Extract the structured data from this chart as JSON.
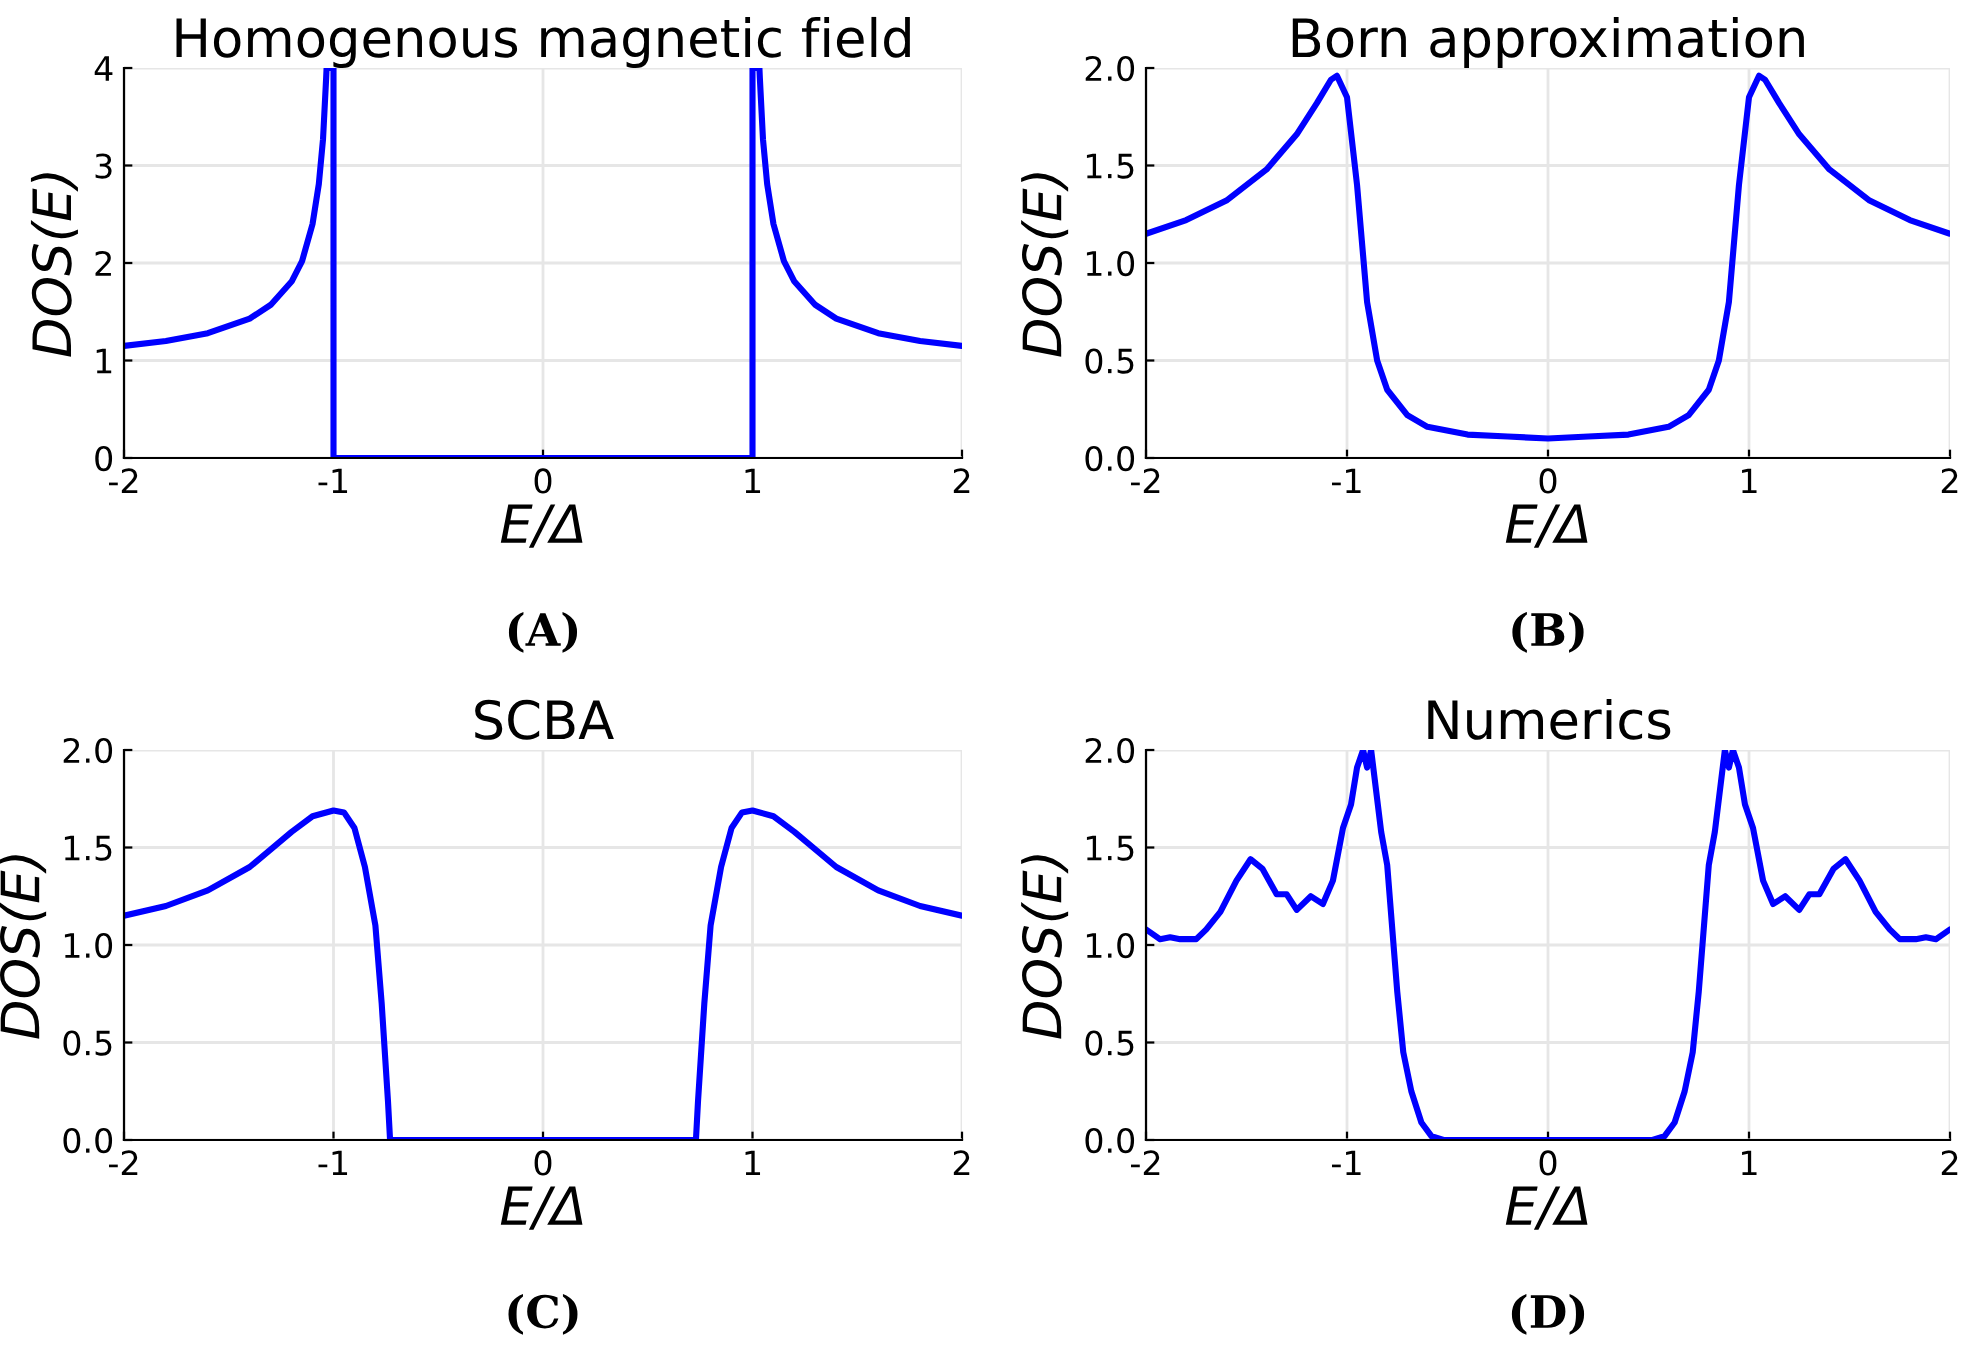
{
  "chart_data": [
    {
      "type": "line",
      "title": "Homogenous magnetic field",
      "xlabel": "E/Δ",
      "ylabel": "DOS(E)",
      "annotations": [
        "(A)"
      ],
      "grid": true,
      "xlim": [
        -2,
        2
      ],
      "ylim": [
        0,
        4
      ],
      "xticks": [
        -2,
        -1,
        0,
        1,
        2
      ],
      "yticks": [
        0,
        1,
        2,
        3,
        4
      ],
      "series": [
        {
          "color": "#0000ff",
          "x": [
            -2,
            -1.8,
            -1.6,
            -1.4,
            -1.3,
            -1.2,
            -1.15,
            -1.1,
            -1.07,
            -1.05,
            -1.035,
            -1.033,
            -1,
            -1,
            1,
            1,
            1.033,
            1.035,
            1.05,
            1.07,
            1.1,
            1.15,
            1.2,
            1.3,
            1.4,
            1.6,
            1.8,
            2
          ],
          "values": [
            1.15,
            1.2,
            1.28,
            1.43,
            1.57,
            1.81,
            2.02,
            2.4,
            2.81,
            3.27,
            3.9,
            4,
            4,
            0,
            0,
            4,
            4,
            3.9,
            3.27,
            2.81,
            2.4,
            2.02,
            1.81,
            1.57,
            1.43,
            1.28,
            1.2,
            1.15
          ]
        }
      ]
    },
    {
      "type": "line",
      "title": "Born approximation",
      "xlabel": "E/Δ",
      "ylabel": "DOS(E)",
      "annotations": [
        "(B)"
      ],
      "grid": true,
      "xlim": [
        -2,
        2
      ],
      "ylim": [
        0,
        2
      ],
      "xticks": [
        -2,
        -1,
        0,
        1,
        2
      ],
      "yticks": [
        {
          "value": 0,
          "label": "0.0"
        },
        0.5,
        {
          "value": 1,
          "label": "1.0"
        },
        1.5,
        {
          "value": 2,
          "label": "2.0"
        }
      ],
      "series": [
        {
          "color": "#0000ff",
          "x": [
            -2,
            -1.8,
            -1.6,
            -1.4,
            -1.25,
            -1.15,
            -1.08,
            -1.05,
            -1.0,
            -0.95,
            -0.9,
            -0.85,
            -0.8,
            -0.7,
            -0.6,
            -0.4,
            -0.2,
            0,
            0.2,
            0.4,
            0.6,
            0.7,
            0.8,
            0.85,
            0.9,
            0.95,
            1.0,
            1.05,
            1.08,
            1.15,
            1.25,
            1.4,
            1.6,
            1.8,
            2
          ],
          "values": [
            1.15,
            1.22,
            1.32,
            1.48,
            1.66,
            1.82,
            1.94,
            1.96,
            1.85,
            1.4,
            0.8,
            0.5,
            0.35,
            0.22,
            0.16,
            0.12,
            0.11,
            0.1,
            0.11,
            0.12,
            0.16,
            0.22,
            0.35,
            0.5,
            0.8,
            1.4,
            1.85,
            1.96,
            1.94,
            1.82,
            1.66,
            1.48,
            1.32,
            1.22,
            1.15
          ]
        }
      ]
    },
    {
      "type": "line",
      "title": "SCBA",
      "xlabel": "E/Δ",
      "ylabel": "DOS(E)",
      "annotations": [
        "(C)"
      ],
      "grid": true,
      "xlim": [
        -2,
        2
      ],
      "ylim": [
        0,
        2
      ],
      "xticks": [
        -2,
        -1,
        0,
        1,
        2
      ],
      "yticks": [
        {
          "value": 0,
          "label": "0.0"
        },
        0.5,
        {
          "value": 1,
          "label": "1.0"
        },
        1.5,
        {
          "value": 2,
          "label": "2.0"
        }
      ],
      "series": [
        {
          "color": "#0000ff",
          "x": [
            -2,
            -1.8,
            -1.6,
            -1.4,
            -1.2,
            -1.1,
            -1.0,
            -0.95,
            -0.9,
            -0.85,
            -0.8,
            -0.77,
            -0.74,
            -0.73,
            0.73,
            0.74,
            0.77,
            0.8,
            0.85,
            0.9,
            0.95,
            1.0,
            1.1,
            1.2,
            1.4,
            1.6,
            1.8,
            2
          ],
          "values": [
            1.15,
            1.2,
            1.28,
            1.4,
            1.58,
            1.66,
            1.69,
            1.68,
            1.6,
            1.4,
            1.1,
            0.7,
            0.2,
            0,
            0,
            0.2,
            0.7,
            1.1,
            1.4,
            1.6,
            1.68,
            1.69,
            1.66,
            1.58,
            1.4,
            1.28,
            1.2,
            1.15
          ]
        }
      ]
    },
    {
      "type": "line",
      "title": "Numerics",
      "xlabel": "E/Δ",
      "ylabel": "DOS(E)",
      "annotations": [
        "(D)"
      ],
      "grid": true,
      "xlim": [
        -2,
        2
      ],
      "ylim": [
        0,
        2
      ],
      "xticks": [
        -2,
        -1,
        0,
        1,
        2
      ],
      "yticks": [
        {
          "value": 0,
          "label": "0.0"
        },
        0.5,
        {
          "value": 1,
          "label": "1.0"
        },
        1.5,
        {
          "value": 2,
          "label": "2.0"
        }
      ],
      "series": [
        {
          "color": "#0000ff",
          "x": [
            -2,
            -1.93,
            -1.88,
            -1.83,
            -1.75,
            -1.7,
            -1.63,
            -1.55,
            -1.48,
            -1.42,
            -1.35,
            -1.3,
            -1.25,
            -1.18,
            -1.12,
            -1.07,
            -1.02,
            -0.98,
            -0.95,
            -0.92,
            -0.9,
            -0.88,
            -0.83,
            -0.8,
            -0.75,
            -0.72,
            -0.68,
            -0.63,
            -0.58,
            -0.52,
            0,
            0.52,
            0.58,
            0.63,
            0.68,
            0.72,
            0.75,
            0.8,
            0.83,
            0.88,
            0.9,
            0.92,
            0.95,
            0.98,
            1.02,
            1.07,
            1.12,
            1.18,
            1.25,
            1.3,
            1.35,
            1.42,
            1.48,
            1.55,
            1.63,
            1.7,
            1.75,
            1.83,
            1.88,
            1.93,
            2
          ],
          "values": [
            1.08,
            1.03,
            1.04,
            1.03,
            1.03,
            1.08,
            1.17,
            1.33,
            1.44,
            1.39,
            1.26,
            1.26,
            1.18,
            1.25,
            1.21,
            1.33,
            1.6,
            1.72,
            1.91,
            2.0,
            1.91,
            2.0,
            1.58,
            1.41,
            0.76,
            0.45,
            0.25,
            0.09,
            0.02,
            0.0,
            0.0,
            0.0,
            0.02,
            0.09,
            0.25,
            0.45,
            0.76,
            1.41,
            1.58,
            2.0,
            1.91,
            2.0,
            1.91,
            1.72,
            1.6,
            1.33,
            1.21,
            1.25,
            1.18,
            1.26,
            1.26,
            1.39,
            1.44,
            1.33,
            1.17,
            1.08,
            1.03,
            1.03,
            1.04,
            1.03,
            1.08
          ]
        }
      ]
    }
  ]
}
